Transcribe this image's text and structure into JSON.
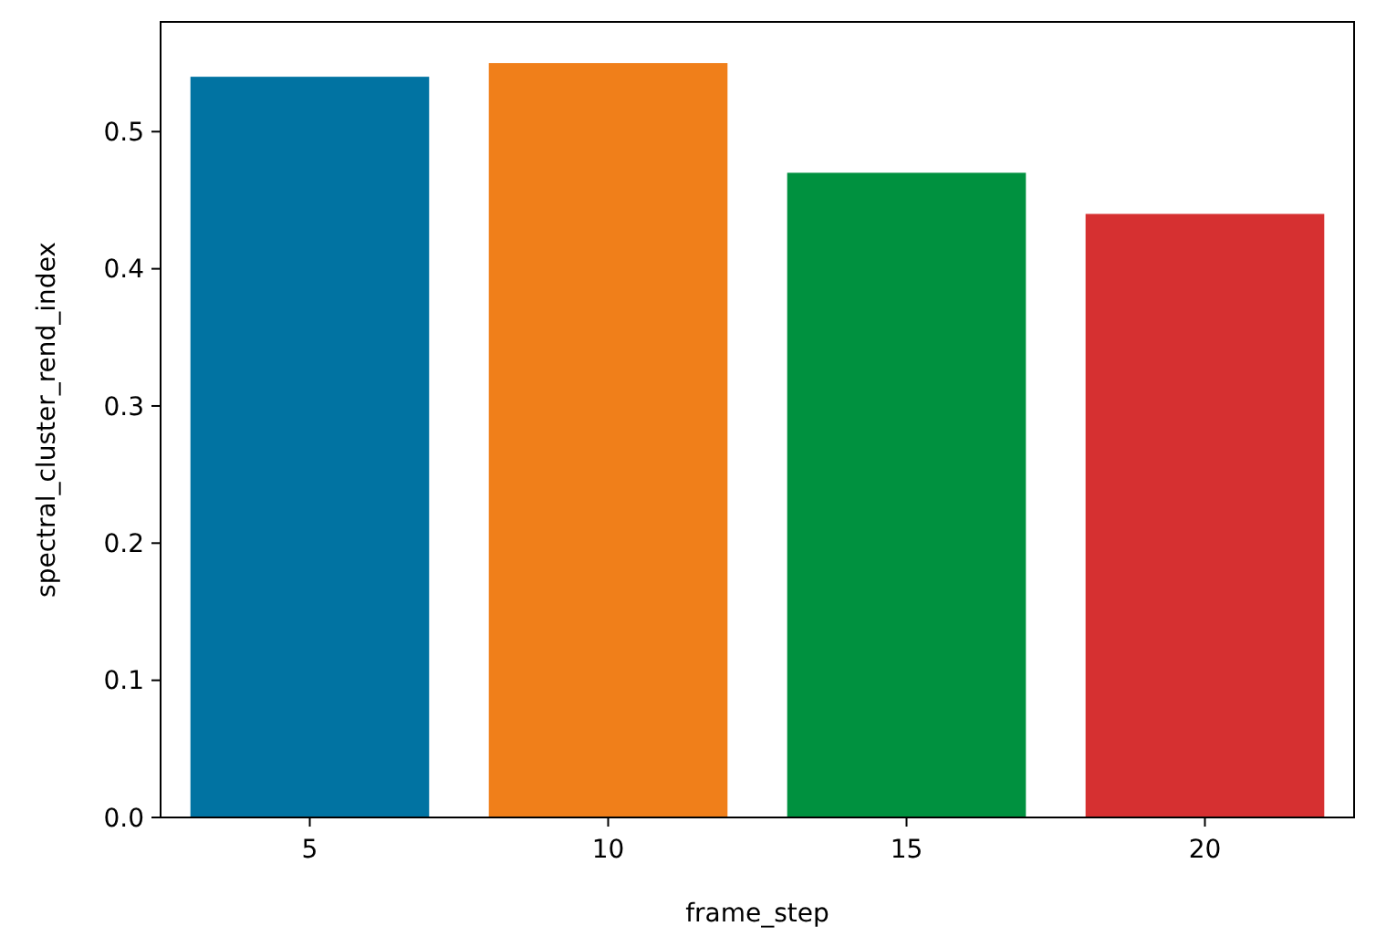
{
  "chart_data": {
    "type": "bar",
    "xlabel": "frame_step",
    "ylabel": "spectral_cluster_rend_index",
    "categories": [
      "5",
      "10",
      "15",
      "20"
    ],
    "values": [
      0.54,
      0.55,
      0.47,
      0.44
    ],
    "colors": [
      "#0173a2",
      "#f07f1a",
      "#00913f",
      "#d63031"
    ],
    "ylim": [
      0,
      0.58
    ],
    "yticks": [
      {
        "value": 0,
        "label": "0.0"
      },
      0.1,
      0.2,
      0.3,
      0.4,
      0.5
    ]
  }
}
